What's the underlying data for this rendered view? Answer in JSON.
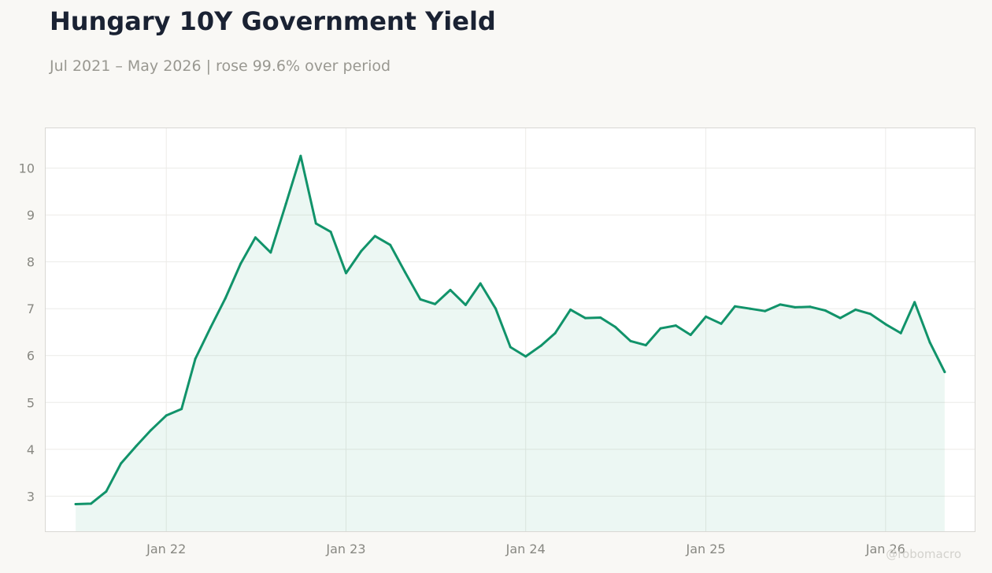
{
  "title": "Hungary 10Y Government Yield",
  "subtitle": "Jul 2021 – May 2026 | rose 99.6% over period",
  "watermark": "@robomacro",
  "colors": {
    "line": "#11936a",
    "fill": "#11936a",
    "background": "#f9f8f5",
    "plot_background": "#ffffff",
    "grid": "#ecebe8"
  },
  "chart_data": {
    "type": "area",
    "title": "Hungary 10Y Government Yield",
    "xlabel": "",
    "ylabel": "",
    "x_tick_labels": [
      "Jan 22",
      "Jan 23",
      "Jan 24",
      "Jan 25",
      "Jan 26"
    ],
    "x_tick_dates": [
      "2022-01",
      "2023-01",
      "2024-01",
      "2025-01",
      "2026-01"
    ],
    "y_ticks": [
      3,
      4,
      5,
      6,
      7,
      8,
      9,
      10
    ],
    "xlim": [
      "2021-05-15",
      "2026-07-15"
    ],
    "ylim": [
      2.25,
      10.85
    ],
    "grid": true,
    "legend": "none",
    "series": [
      {
        "x": [
          "2021-07",
          "2021-08",
          "2021-09",
          "2021-10",
          "2021-11",
          "2021-12",
          "2022-01",
          "2022-02",
          "2022-03",
          "2022-04",
          "2022-05",
          "2022-06",
          "2022-07",
          "2022-08",
          "2022-09",
          "2022-10",
          "2022-11",
          "2022-12",
          "2023-01",
          "2023-02",
          "2023-03",
          "2023-04",
          "2023-05",
          "2023-06",
          "2023-07",
          "2023-08",
          "2023-09",
          "2023-10",
          "2023-11",
          "2023-12",
          "2024-01",
          "2024-02",
          "2024-03",
          "2024-04",
          "2024-05",
          "2024-06",
          "2024-07",
          "2024-08",
          "2024-09",
          "2024-10",
          "2024-11",
          "2024-12",
          "2025-01",
          "2025-02",
          "2025-03",
          "2025-04",
          "2025-05",
          "2025-06",
          "2025-07",
          "2025-08",
          "2025-09",
          "2025-10",
          "2025-11",
          "2025-12",
          "2026-01",
          "2026-02",
          "2026-03",
          "2026-04",
          "2026-05"
        ],
        "values": [
          2.83,
          2.84,
          3.1,
          3.7,
          4.07,
          4.41,
          4.72,
          4.86,
          5.93,
          6.6,
          7.22,
          7.96,
          8.52,
          8.2,
          9.24,
          10.26,
          8.82,
          8.64,
          7.76,
          8.23,
          8.55,
          8.36,
          7.78,
          7.2,
          7.1,
          7.4,
          7.08,
          7.54,
          7.0,
          6.18,
          5.98,
          6.21,
          6.48,
          6.98,
          6.8,
          6.81,
          6.61,
          6.31,
          6.22,
          6.58,
          6.64,
          6.44,
          6.83,
          6.68,
          7.05,
          7.0,
          6.95,
          7.09,
          7.03,
          7.04,
          6.96,
          6.8,
          6.98,
          6.89,
          6.67,
          6.48,
          7.14,
          6.28,
          5.65
        ]
      }
    ]
  }
}
